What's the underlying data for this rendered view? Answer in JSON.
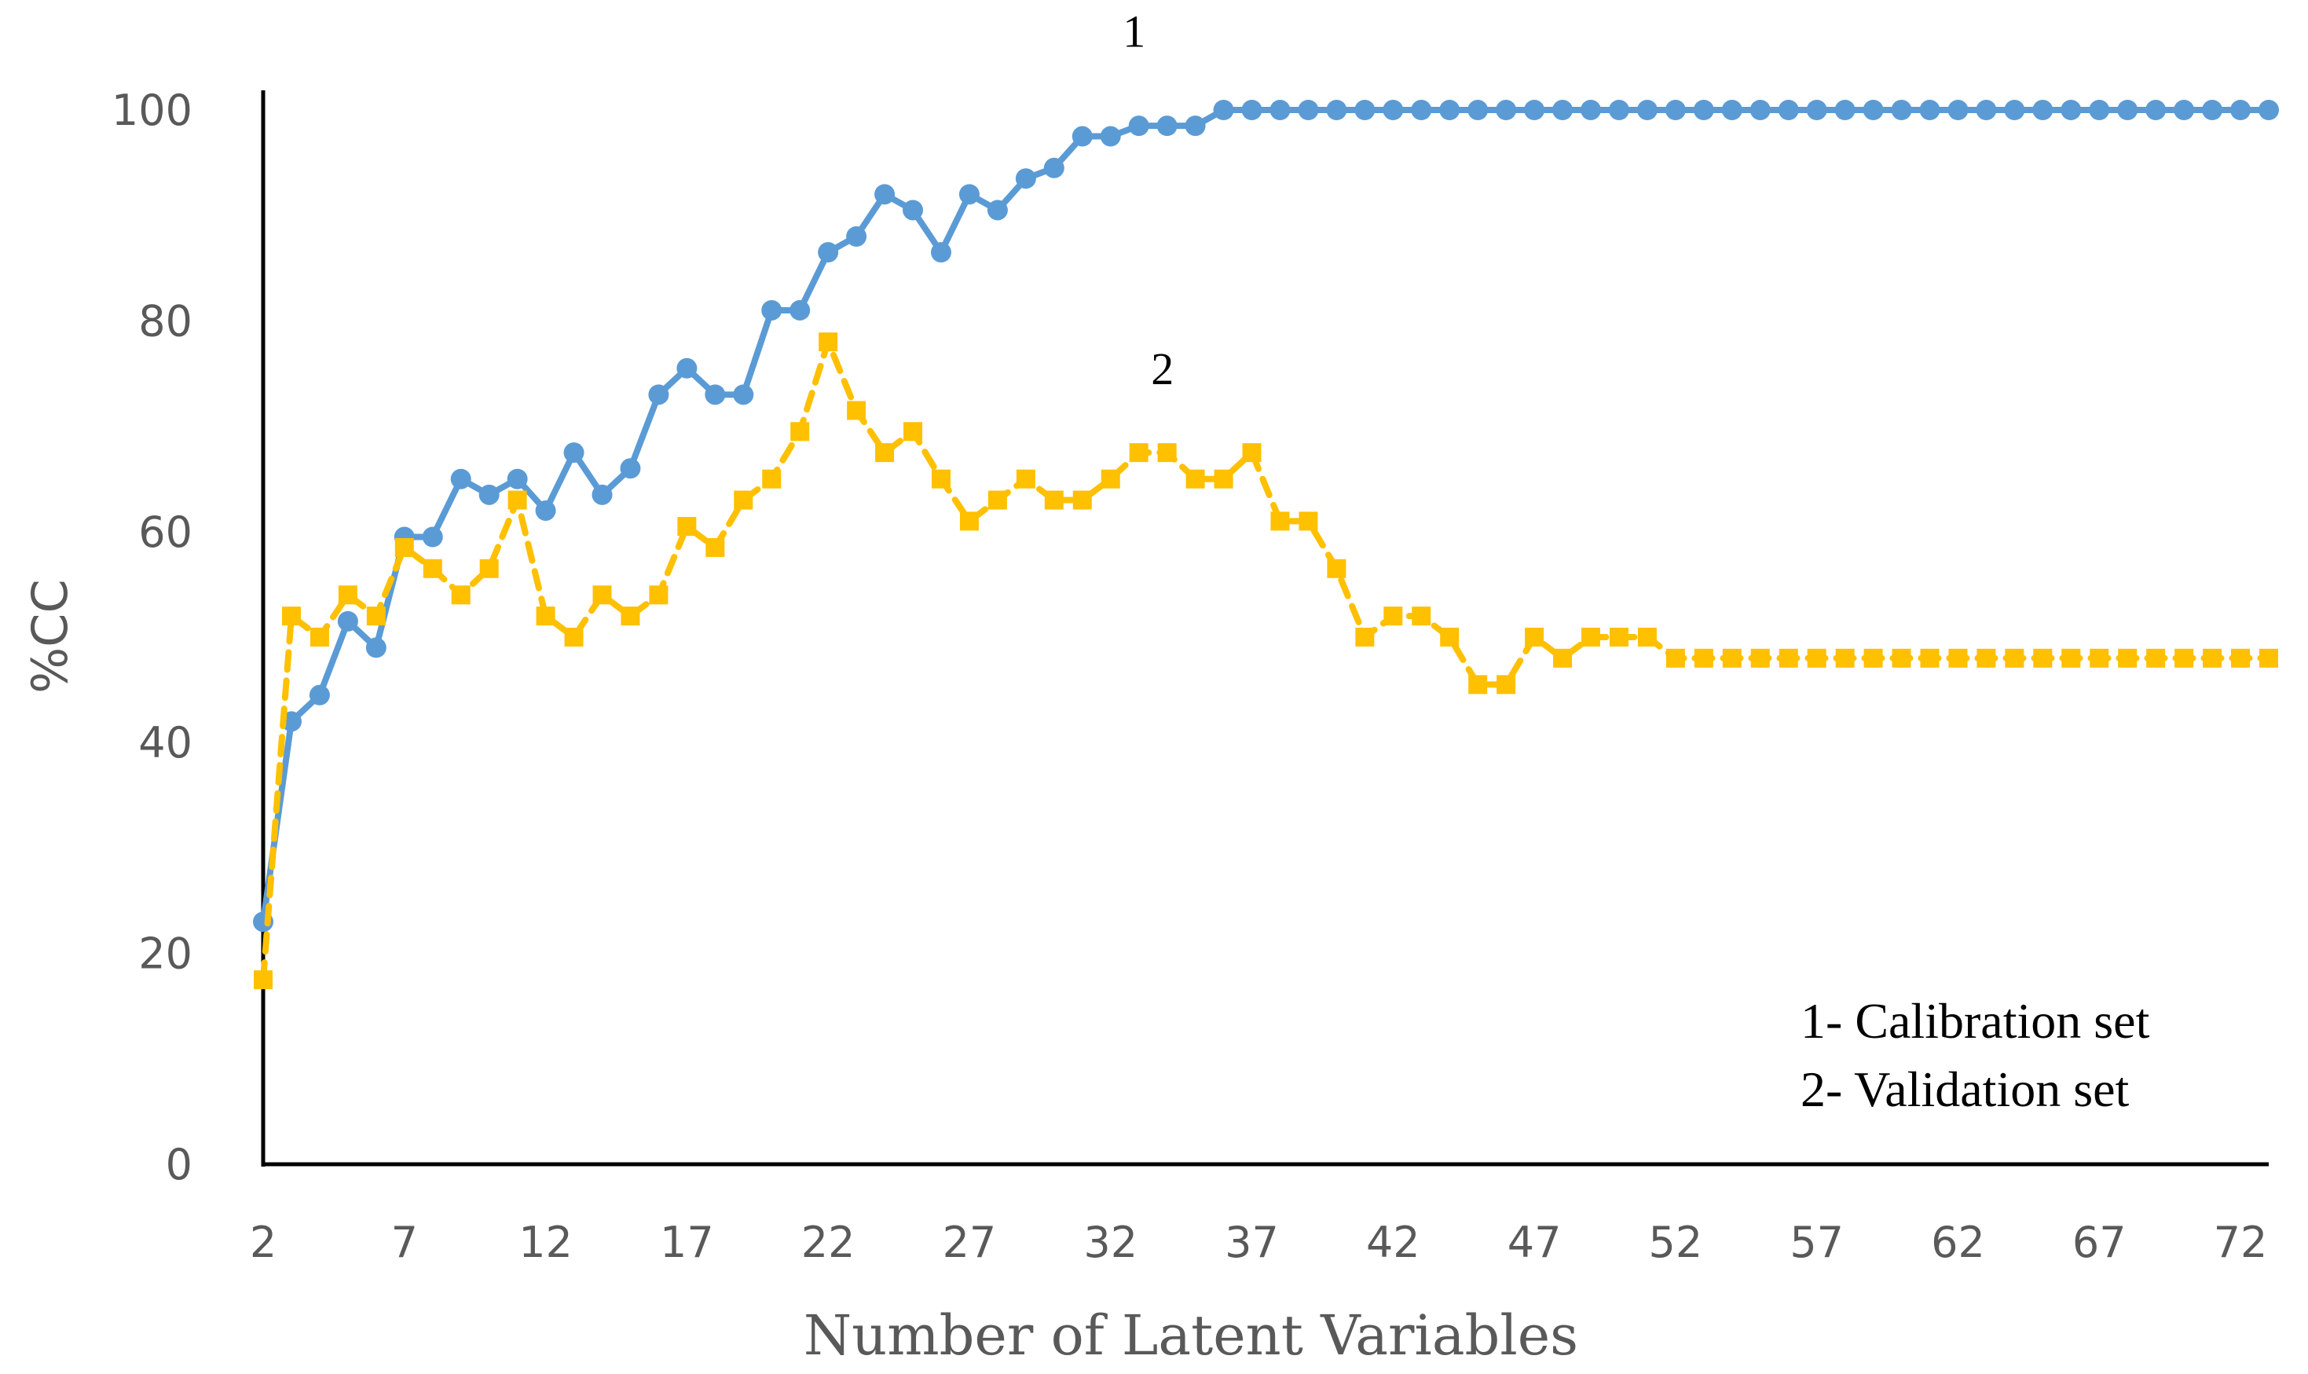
{
  "chart_data": {
    "type": "line",
    "title": "",
    "xlabel": "Number of Latent Variables",
    "ylabel": "%CC",
    "x": [
      2,
      3,
      4,
      5,
      6,
      7,
      8,
      9,
      10,
      11,
      12,
      13,
      14,
      15,
      16,
      17,
      18,
      19,
      20,
      21,
      22,
      23,
      24,
      25,
      26,
      27,
      28,
      29,
      30,
      31,
      32,
      33,
      34,
      35,
      36,
      37,
      38,
      39,
      40,
      41,
      42,
      43,
      44,
      45,
      46,
      47,
      48,
      49,
      50,
      51,
      52,
      53,
      54,
      55,
      56,
      57,
      58,
      59,
      60,
      61,
      62,
      63,
      64,
      65,
      66,
      67,
      68,
      69,
      70,
      71,
      72,
      73
    ],
    "xticks": [
      2,
      7,
      12,
      17,
      22,
      27,
      32,
      37,
      42,
      47,
      52,
      57,
      62,
      67,
      72
    ],
    "xtick_labels": [
      "2",
      "7",
      "12",
      "17",
      "22",
      "27",
      "32",
      "37",
      "42",
      "47",
      "52",
      "57",
      "62",
      "67",
      "72"
    ],
    "yticks": [
      0,
      20,
      40,
      60,
      80,
      100
    ],
    "ytick_labels": [
      "0",
      "20",
      "40",
      "60",
      "80",
      "100"
    ],
    "xlim": [
      2,
      73
    ],
    "ylim": [
      0,
      100
    ],
    "grid": false,
    "series": [
      {
        "name": "Calibration set",
        "color": "#5B9BD5",
        "line_style": "solid",
        "marker": "circle",
        "values": [
          23,
          42,
          44.5,
          51.5,
          49,
          59.5,
          59.5,
          65,
          63.5,
          65,
          62,
          67.5,
          63.5,
          66,
          73,
          75.5,
          73,
          73,
          81,
          81,
          86.5,
          88,
          92,
          90.5,
          86.5,
          92,
          90.5,
          93.5,
          94.5,
          97.5,
          97.5,
          98.5,
          98.5,
          98.5,
          100,
          100,
          100,
          100,
          100,
          100,
          100,
          100,
          100,
          100,
          100,
          100,
          100,
          100,
          100,
          100,
          100,
          100,
          100,
          100,
          100,
          100,
          100,
          100,
          100,
          100,
          100,
          100,
          100,
          100,
          100,
          100,
          100,
          100,
          100,
          100,
          100,
          100
        ]
      },
      {
        "name": "Validation set",
        "color": "#FFC000",
        "line_style": "dashed",
        "marker": "square",
        "values": [
          17.5,
          52,
          50,
          54,
          52,
          58.5,
          56.5,
          54,
          56.5,
          63,
          52,
          50,
          54,
          52,
          54,
          60.5,
          58.5,
          63,
          65,
          69.5,
          78,
          71.5,
          67.5,
          69.5,
          65,
          61,
          63,
          65,
          63,
          63,
          65,
          67.5,
          67.5,
          65,
          65,
          67.5,
          61,
          61,
          56.5,
          50,
          52,
          52,
          50,
          45.5,
          45.5,
          50,
          48,
          50,
          50,
          50,
          48,
          48,
          48,
          48,
          48,
          48,
          48,
          48,
          48,
          48,
          48,
          48,
          48,
          48,
          48,
          48,
          48,
          48,
          48,
          48,
          48,
          48
        ]
      }
    ],
    "annotations": [
      {
        "text": "1",
        "series": 0,
        "at_x": 32,
        "at_y": 106
      },
      {
        "text": "2",
        "series": 1,
        "at_x": 33,
        "at_y": 74
      }
    ],
    "legend": {
      "position": "bottom-right",
      "entries": [
        "1- Calibration set",
        "2- Validation set"
      ]
    }
  }
}
